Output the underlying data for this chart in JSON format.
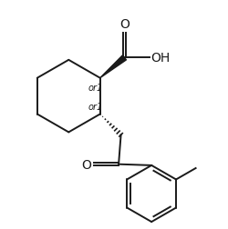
{
  "bg_color": "#ffffff",
  "line_color": "#1a1a1a",
  "line_width": 1.4,
  "text_color": "#1a1a1a",
  "figsize": [
    2.5,
    2.53
  ],
  "dpi": 100,
  "xlim": [
    0,
    10
  ],
  "ylim": [
    0,
    10
  ]
}
